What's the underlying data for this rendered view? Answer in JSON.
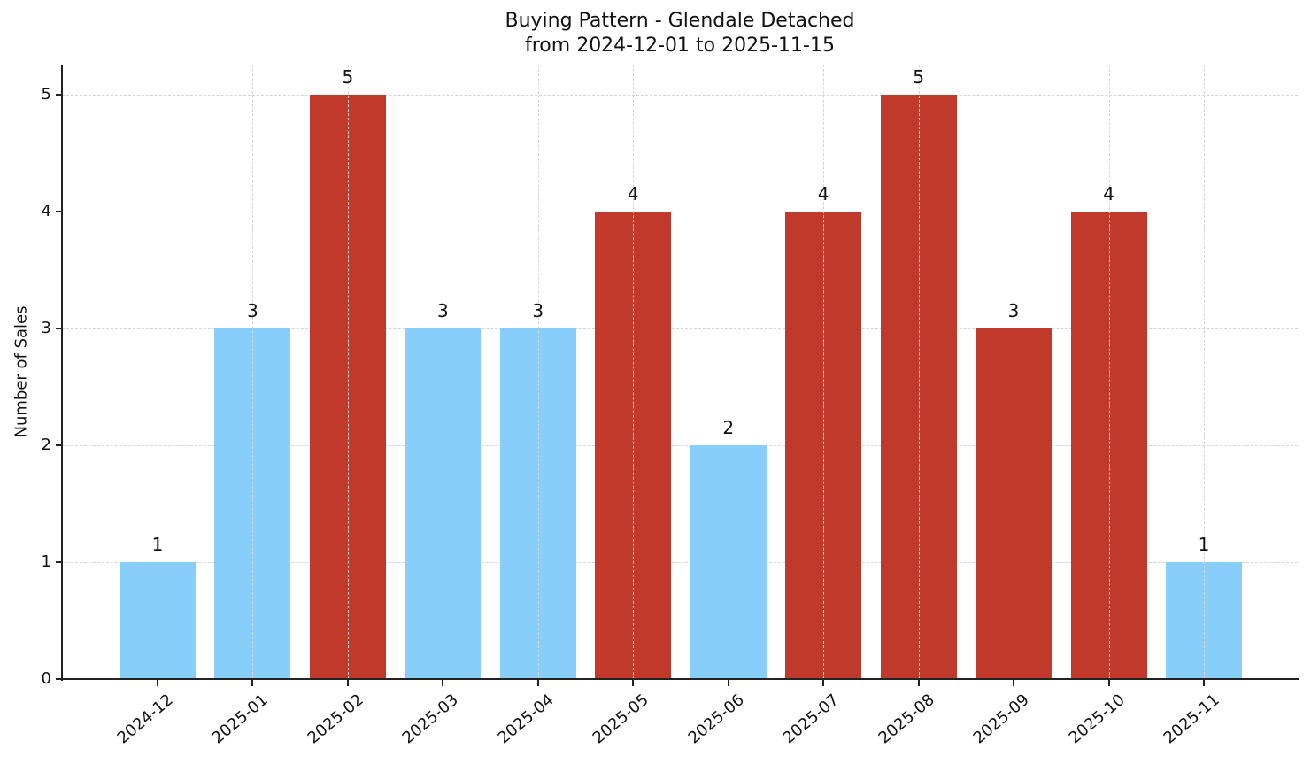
{
  "chart_data": {
    "type": "bar",
    "title": "Buying Pattern - Glendale Detached",
    "subtitle": "from 2024-12-01 to 2025-11-15",
    "xlabel": "",
    "ylabel": "Number of Sales",
    "ylim": [
      0,
      5.25
    ],
    "yticks": [
      0,
      1,
      2,
      3,
      4,
      5
    ],
    "grid": true,
    "legend": null,
    "categories": [
      "2024-12",
      "2025-01",
      "2025-02",
      "2025-03",
      "2025-04",
      "2025-05",
      "2025-06",
      "2025-07",
      "2025-08",
      "2025-09",
      "2025-10",
      "2025-11"
    ],
    "values": [
      1,
      3,
      5,
      3,
      3,
      4,
      2,
      4,
      5,
      3,
      4,
      1
    ],
    "bar_colors": [
      "#87CEFA",
      "#87CEFA",
      "#C0392B",
      "#87CEFA",
      "#87CEFA",
      "#C0392B",
      "#87CEFA",
      "#C0392B",
      "#C0392B",
      "#C0392B",
      "#C0392B",
      "#87CEFA"
    ],
    "data_labels": [
      "1",
      "3",
      "5",
      "3",
      "3",
      "4",
      "2",
      "4",
      "5",
      "3",
      "4",
      "1"
    ]
  },
  "colors": {
    "high": "#C0392B",
    "low": "#87CEFA"
  }
}
